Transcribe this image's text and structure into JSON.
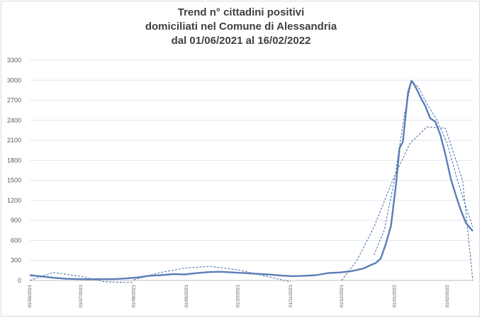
{
  "chart_data": {
    "type": "line",
    "title": "Trend n° cittadini positivi domiciliati nel Comune di Alessandria dal 01/06/2021 al 16/02/2022",
    "title_lines": [
      "Trend n° cittadini positivi",
      "domiciliati nel Comune di Alessandria",
      "dal 01/06/2021 al 16/02/2022"
    ],
    "xlabel": "",
    "ylabel": "",
    "ylim": [
      0,
      3300
    ],
    "y_ticks": [
      "0",
      "300",
      "600",
      "900",
      "1200",
      "1500",
      "1800",
      "2100",
      "2400",
      "2700",
      "3000",
      "3300"
    ],
    "x_ticks": [
      "01/06/2021",
      "01/07/2021",
      "01/08/2021",
      "01/09/2021",
      "01/10/2021",
      "01/11/2021",
      "01/12/2021",
      "01/01/2022",
      "01/02/2022"
    ],
    "grid": true,
    "legend": "none",
    "colors": {
      "series": "#5b7db8",
      "trend": "#4a6ea9",
      "grid": "#dfe6f1",
      "axis": "#bfbfbf"
    },
    "series": [
      {
        "style": "solid",
        "x": [
          "01/06/2021",
          "08/06/2021",
          "15/06/2021",
          "22/06/2021",
          "29/06/2021",
          "06/07/2021",
          "13/07/2021",
          "20/07/2021",
          "27/07/2021",
          "03/08/2021",
          "10/08/2021",
          "17/08/2021",
          "24/08/2021",
          "31/08/2021",
          "07/09/2021",
          "14/09/2021",
          "21/09/2021",
          "28/09/2021",
          "05/10/2021",
          "12/10/2021",
          "19/10/2021",
          "26/10/2021",
          "02/11/2021",
          "09/11/2021",
          "16/11/2021",
          "23/11/2021",
          "30/11/2021",
          "07/12/2021",
          "14/12/2021",
          "18/12/2021",
          "21/12/2021",
          "24/12/2021",
          "27/12/2021",
          "30/12/2021",
          "02/01/2022",
          "04/01/2022",
          "06/01/2022",
          "09/01/2022",
          "11/01/2022",
          "12/01/2022",
          "14/01/2022",
          "17/01/2022",
          "19/01/2022",
          "22/01/2022",
          "25/01/2022",
          "28/01/2022",
          "31/01/2022",
          "03/02/2022",
          "06/02/2022",
          "09/02/2022",
          "12/02/2022",
          "16/02/2022"
        ],
        "y": [
          80,
          60,
          40,
          25,
          20,
          18,
          20,
          20,
          30,
          45,
          70,
          80,
          95,
          90,
          110,
          125,
          130,
          120,
          110,
          100,
          90,
          75,
          65,
          70,
          80,
          110,
          120,
          140,
          180,
          230,
          260,
          330,
          550,
          820,
          1450,
          1980,
          2080,
          2820,
          2990,
          2960,
          2870,
          2710,
          2620,
          2430,
          2380,
          2180,
          1880,
          1530,
          1280,
          1050,
          860,
          740
        ]
      },
      {
        "style": "dashed",
        "x": [
          "01/06/2021",
          "15/06/2021",
          "01/07/2021",
          "15/07/2021",
          "01/08/2021"
        ],
        "y": [
          0,
          120,
          60,
          -20,
          -150
        ]
      },
      {
        "style": "dashed",
        "x": [
          "01/08/2021",
          "15/08/2021",
          "01/09/2021",
          "15/09/2021",
          "01/10/2021",
          "15/10/2021",
          "01/11/2021"
        ],
        "y": [
          10,
          110,
          190,
          210,
          160,
          80,
          -20
        ]
      },
      {
        "style": "dashed",
        "x": [
          "01/12/2021",
          "10/12/2021",
          "20/12/2021",
          "31/12/2021",
          "10/01/2022",
          "20/01/2022",
          "31/01/2022",
          "10/02/2022",
          "16/02/2022"
        ],
        "y": [
          0,
          300,
          800,
          1500,
          2050,
          2300,
          2280,
          1500,
          0
        ]
      },
      {
        "style": "dashed",
        "x": [
          "20/12/2021",
          "26/12/2021",
          "01/01/2022",
          "07/01/2022",
          "11/01/2022",
          "15/01/2022",
          "20/01/2022",
          "26/01/2022",
          "01/02/2022",
          "07/02/2022",
          "12/02/2022",
          "16/02/2022"
        ],
        "y": [
          380,
          750,
          1500,
          2500,
          2980,
          2900,
          2650,
          2400,
          2050,
          1500,
          1100,
          800
        ]
      }
    ]
  }
}
